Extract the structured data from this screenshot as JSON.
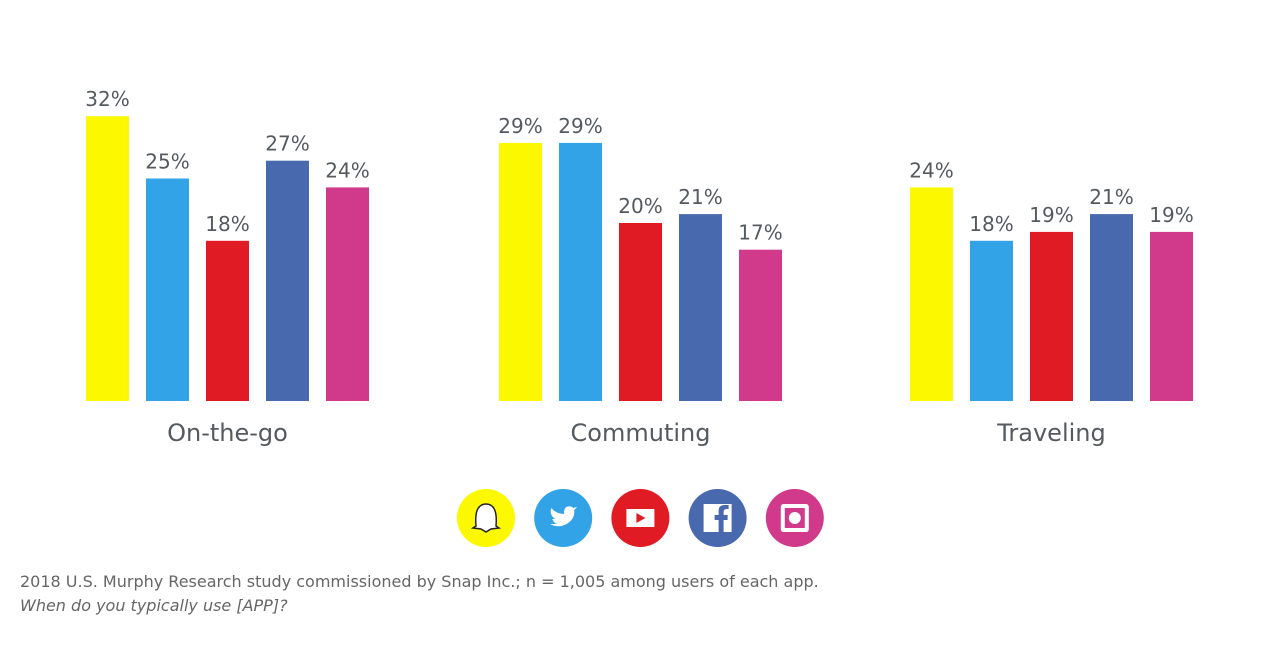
{
  "chart_data": {
    "type": "bar",
    "categories": [
      "On-the-go",
      "Commuting",
      "Traveling"
    ],
    "series": [
      {
        "color": "#fcf800",
        "values": [
          32,
          29,
          24
        ],
        "value_labels": [
          "32%",
          "29%",
          "24%"
        ]
      },
      {
        "color": "#33a3e8",
        "values": [
          25,
          29,
          18
        ],
        "value_labels": [
          "25%",
          "29%",
          "18%"
        ]
      },
      {
        "color": "#e01b24",
        "values": [
          18,
          20,
          19
        ],
        "value_labels": [
          "18%",
          "20%",
          "19%"
        ]
      },
      {
        "color": "#4869ad",
        "values": [
          27,
          21,
          21
        ],
        "value_labels": [
          "27%",
          "21%",
          "21%"
        ]
      },
      {
        "color": "#d13a8a",
        "values": [
          24,
          17,
          19
        ],
        "value_labels": [
          "24%",
          "17%",
          "19%"
        ]
      }
    ],
    "source": "2018 U.S. Murphy Research study commissioned by Snap Inc.; n = 1,005 among users of each app.",
    "question": "When do you typically use [APP]?"
  }
}
